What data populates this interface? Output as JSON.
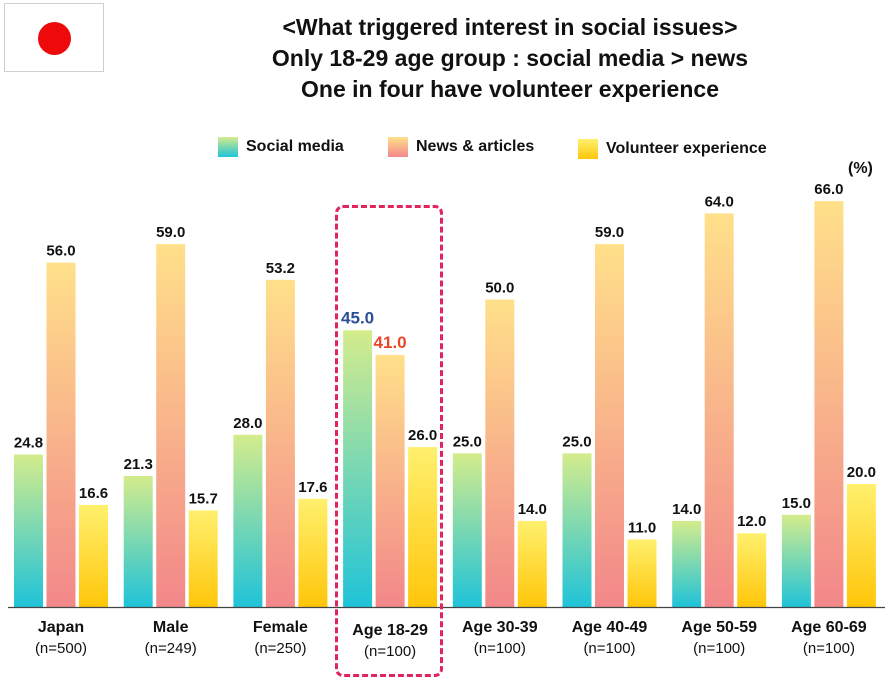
{
  "colors": {
    "social_top": "#d4ec8c",
    "social_bottom": "#1fc3d9",
    "news_top": "#ffe08a",
    "news_bottom": "#f2878a",
    "volunteer_top": "#fff06e",
    "volunteer_bottom": "#ffc60a",
    "highlight": "#e0245e",
    "label_blue": "#2b4f96",
    "label_red": "#e8472a",
    "axis": "#444444",
    "flag_red": "#ee0a0a"
  },
  "chart_data": {
    "type": "bar",
    "title_lines": [
      "<What triggered interest in social issues>",
      "Only 18-29 age group : social media > news",
      "One in four have volunteer experience"
    ],
    "unit": "(%)",
    "categories": [
      "Japan",
      "Male",
      "Female",
      "Age 18-29",
      "Age 30-39",
      "Age 40-49",
      "Age 50-59",
      "Age 60-69"
    ],
    "sample_sizes": [
      "(n=500)",
      "(n=249)",
      "(n=250)",
      "(n=100)",
      "(n=100)",
      "(n=100)",
      "(n=100)",
      "(n=100)"
    ],
    "series": [
      {
        "name": "Social media",
        "values": [
          24.8,
          21.3,
          28.0,
          45.0,
          25.0,
          25.0,
          14.0,
          15.0
        ]
      },
      {
        "name": "News & articles",
        "values": [
          56.0,
          59.0,
          53.2,
          41.0,
          50.0,
          59.0,
          64.0,
          66.0
        ]
      },
      {
        "name": "Volunteer experience",
        "values": [
          16.6,
          15.7,
          17.6,
          26.0,
          14.0,
          11.0,
          12.0,
          20.0
        ]
      }
    ],
    "highlighted_category": "Age 18-29",
    "legend_position": "top",
    "grid": false
  }
}
